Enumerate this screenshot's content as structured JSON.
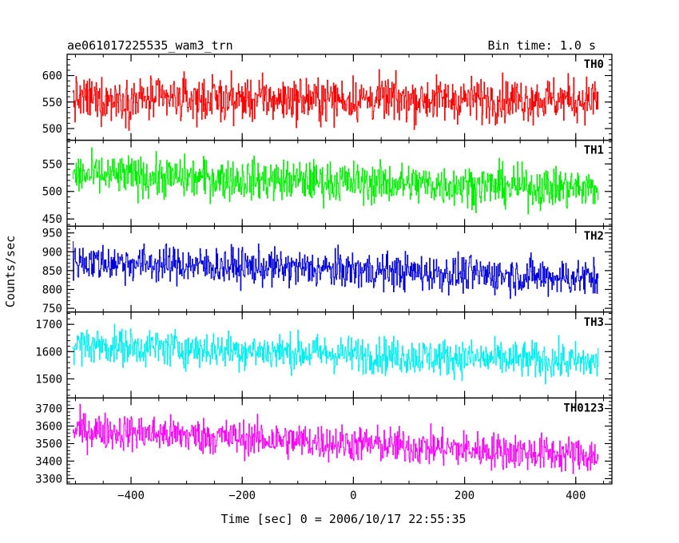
{
  "chart_data": {
    "type": "line",
    "title_left": "ae061017225535_wam3_trn",
    "title_right": "Bin time: 1.0 s",
    "xlabel": "Time [sec] 0 = 2006/10/17 22:55:35",
    "ylabel": "Counts/sec",
    "xlim": [
      -515,
      465
    ],
    "x_ticks": [
      -400,
      -200,
      0,
      200,
      400
    ],
    "x_tick_labels": [
      "−400",
      "−200",
      "0",
      "200",
      "400"
    ],
    "x_range": [
      -505,
      440
    ],
    "grid": false,
    "panels": [
      {
        "name": "TH0",
        "color": "#ff0000",
        "ylim": [
          478,
          640
        ],
        "y_ticks": [
          500,
          550,
          600
        ],
        "y_tick_labels": [
          "500",
          "550",
          "600"
        ],
        "mean_start": 555,
        "mean_end": 555,
        "amp": 38
      },
      {
        "name": "TH1",
        "color": "#00ee00",
        "ylim": [
          437,
          593
        ],
        "y_ticks": [
          450,
          500,
          550
        ],
        "y_tick_labels": [
          "450",
          "500",
          "550"
        ],
        "mean_start": 530,
        "mean_end": 505,
        "amp": 34
      },
      {
        "name": "TH2",
        "color": "#0000dd",
        "ylim": [
          740,
          968
        ],
        "y_ticks": [
          750,
          800,
          850,
          900,
          950
        ],
        "y_tick_labels": [
          "750",
          "800",
          "850",
          "900",
          "950"
        ],
        "mean_start": 875,
        "mean_end": 830,
        "amp": 45
      },
      {
        "name": "TH3",
        "color": "#00eeee",
        "ylim": [
          1430,
          1745
        ],
        "y_ticks": [
          1500,
          1600,
          1700
        ],
        "y_tick_labels": [
          "1500",
          "1600",
          "1700"
        ],
        "mean_start": 1625,
        "mean_end": 1560,
        "amp": 62
      },
      {
        "name": "TH0123",
        "color": "#ff00ff",
        "ylim": [
          3270,
          3760
        ],
        "y_ticks": [
          3300,
          3400,
          3500,
          3600,
          3700
        ],
        "y_tick_labels": [
          "3300",
          "3400",
          "3500",
          "3600",
          "3700"
        ],
        "mean_start": 3580,
        "mean_end": 3430,
        "amp": 95
      }
    ]
  }
}
